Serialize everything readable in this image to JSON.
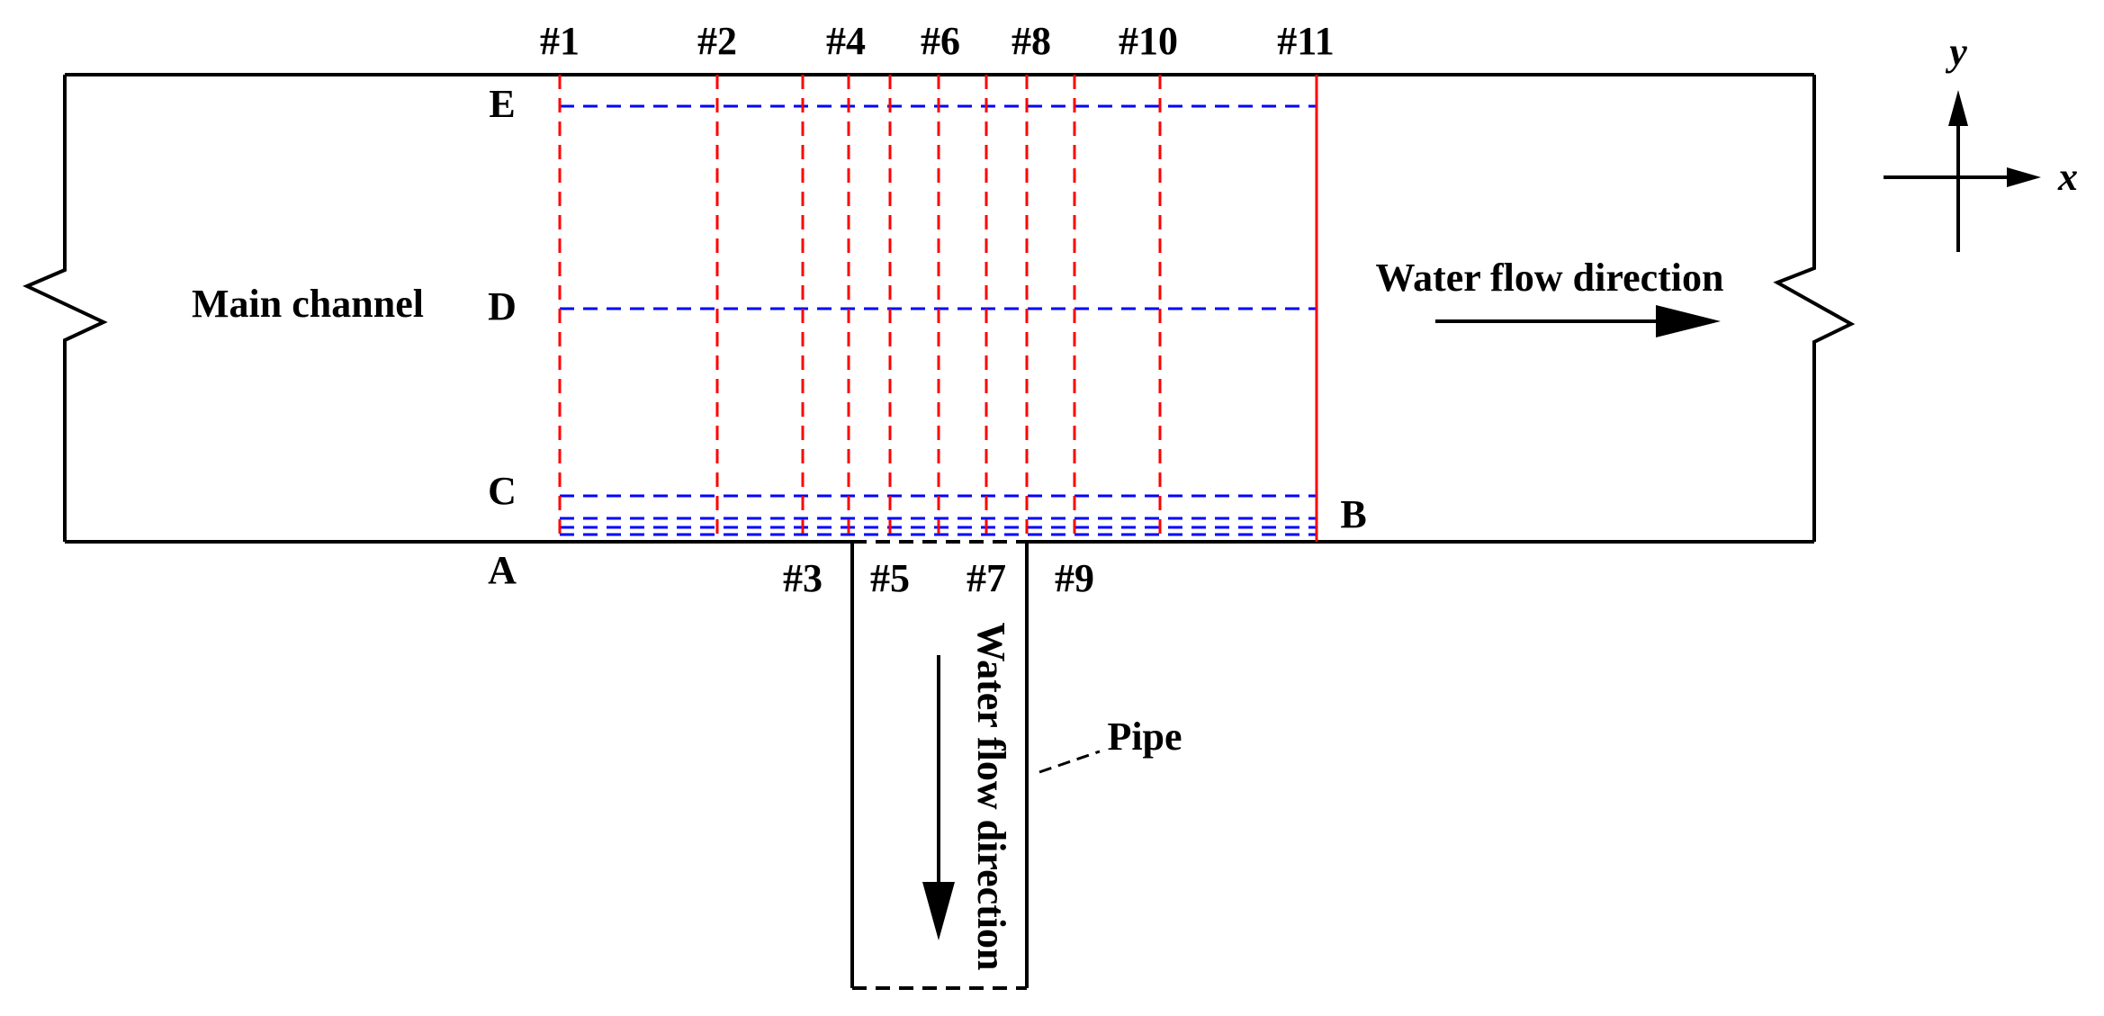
{
  "labels": {
    "main_channel": "Main channel",
    "pipe": "Pipe",
    "flow_main": "Water flow direction",
    "flow_pipe": "Water flow direction",
    "axis_x": "x",
    "axis_y": "y"
  },
  "section_labels_top": [
    "#1",
    "#2",
    "#4",
    "#6",
    "#8",
    "#10",
    "#11"
  ],
  "section_labels_bottom": [
    "#3",
    "#5",
    "#7",
    "#9"
  ],
  "line_labels": {
    "A": "A",
    "B": "B",
    "C": "C",
    "D": "D",
    "E": "E"
  },
  "colors": {
    "outline": "#000000",
    "cross_sections": "#ff0000",
    "longitudinal_lines": "#0000ff",
    "background": "#ffffff"
  }
}
